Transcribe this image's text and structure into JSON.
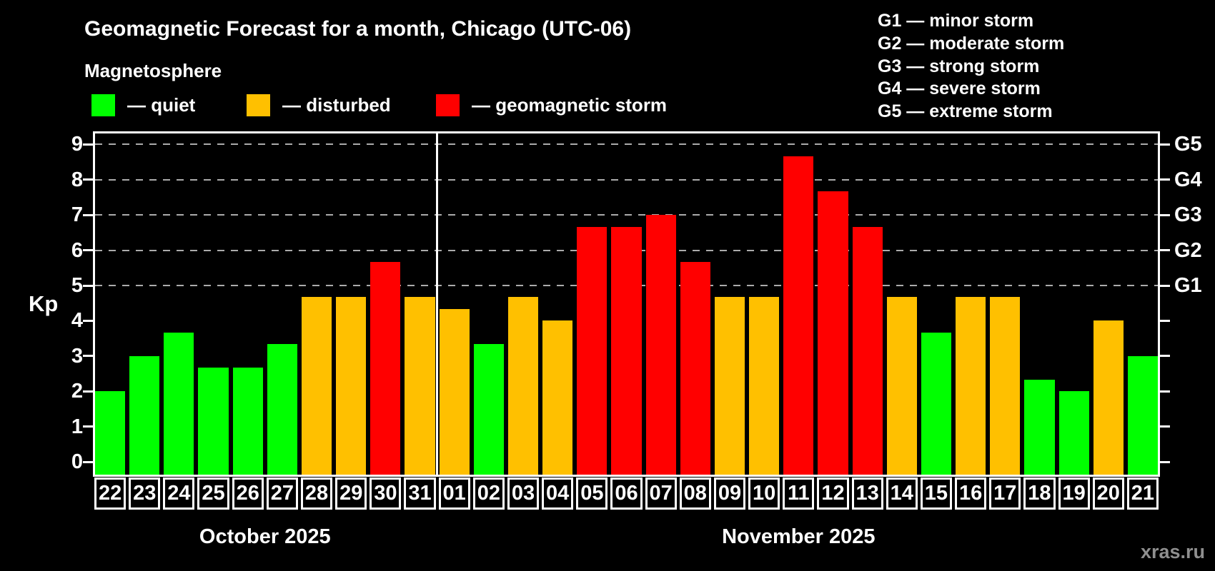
{
  "title": "Geomagnetic Forecast for a month, Chicago (UTC-06)",
  "subtitle": "Magnetosphere",
  "ylabel": "Kp",
  "watermark": "xras.ru",
  "legend": [
    {
      "key": "quiet",
      "label": "— quiet",
      "color": "#00ff00"
    },
    {
      "key": "disturbed",
      "label": "— disturbed",
      "color": "#ffc000"
    },
    {
      "key": "storm",
      "label": "— geomagnetic storm",
      "color": "#ff0000"
    }
  ],
  "storm_scale": [
    "G1 — minor storm",
    "G2 — moderate storm",
    "G3 — strong storm",
    "G4 — severe storm",
    "G5 — extreme storm"
  ],
  "chart_data": {
    "type": "bar",
    "title": "Geomagnetic Forecast for a month, Chicago (UTC-06)",
    "ylabel": "Kp",
    "ylim": [
      0,
      9
    ],
    "yticks": [
      0,
      1,
      2,
      3,
      4,
      5,
      6,
      7,
      8,
      9
    ],
    "grid_levels": [
      5,
      6,
      7,
      8,
      9
    ],
    "right_axis": [
      {
        "kp": 5,
        "label": "G1"
      },
      {
        "kp": 6,
        "label": "G2"
      },
      {
        "kp": 7,
        "label": "G3"
      },
      {
        "kp": 8,
        "label": "G4"
      },
      {
        "kp": 9,
        "label": "G5"
      }
    ],
    "colors": {
      "quiet": "#00ff00",
      "disturbed": "#ffc000",
      "storm": "#ff0000"
    },
    "months": [
      {
        "label": "October 2025",
        "start": 0,
        "days": 10
      },
      {
        "label": "November 2025",
        "start": 10,
        "days": 21
      }
    ],
    "categories": [
      "22",
      "23",
      "24",
      "25",
      "26",
      "27",
      "28",
      "29",
      "30",
      "31",
      "01",
      "02",
      "03",
      "04",
      "05",
      "06",
      "07",
      "08",
      "09",
      "10",
      "11",
      "12",
      "13",
      "14",
      "15",
      "16",
      "17",
      "18",
      "19",
      "20",
      "21"
    ],
    "values": [
      2,
      3,
      3.67,
      2.67,
      2.67,
      3.33,
      4.67,
      4.67,
      5.67,
      4.67,
      4.33,
      3.33,
      4.67,
      4,
      6.67,
      6.67,
      7,
      5.67,
      4.67,
      4.67,
      8.67,
      7.67,
      6.67,
      4.67,
      3.67,
      4.67,
      4.67,
      2.33,
      2,
      4,
      3
    ],
    "status": [
      "quiet",
      "quiet",
      "quiet",
      "quiet",
      "quiet",
      "quiet",
      "disturbed",
      "disturbed",
      "storm",
      "disturbed",
      "disturbed",
      "quiet",
      "disturbed",
      "disturbed",
      "storm",
      "storm",
      "storm",
      "storm",
      "disturbed",
      "disturbed",
      "storm",
      "storm",
      "storm",
      "disturbed",
      "quiet",
      "disturbed",
      "disturbed",
      "quiet",
      "quiet",
      "disturbed",
      "quiet"
    ]
  }
}
